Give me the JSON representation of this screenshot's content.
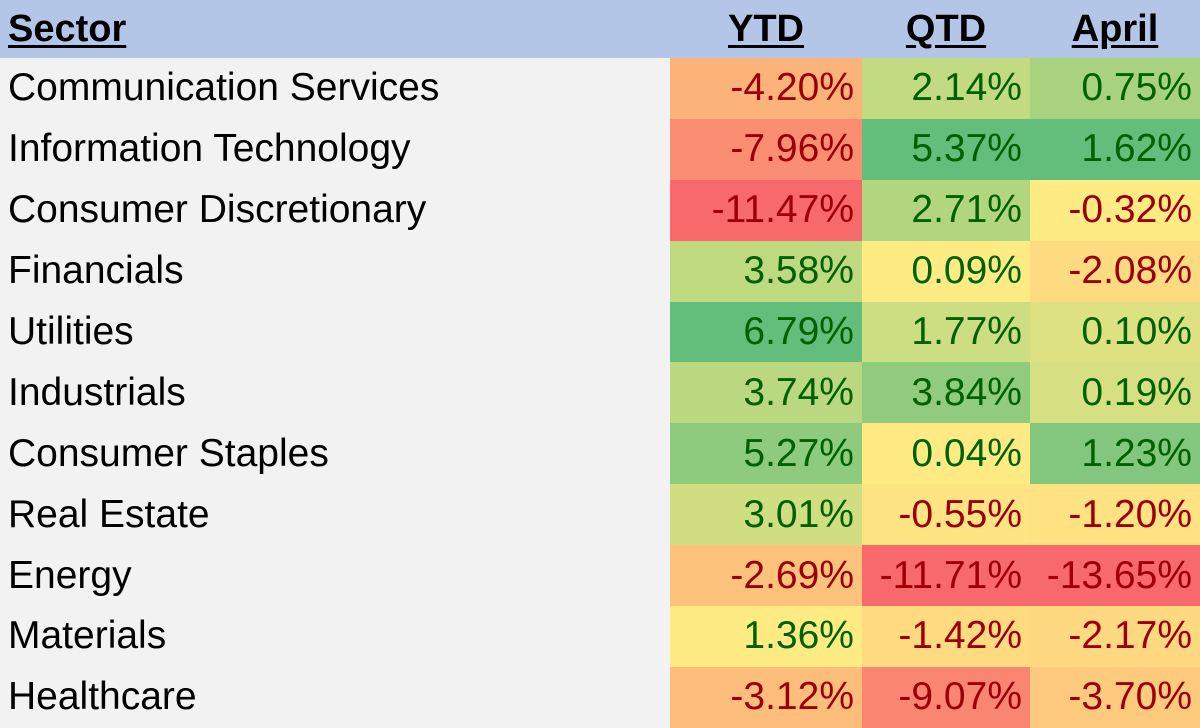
{
  "chart_data": {
    "type": "table",
    "title": "",
    "columns": [
      "Sector",
      "YTD",
      "QTD",
      "April"
    ],
    "rows": [
      {
        "sector": "Communication Services",
        "ytd": "-4.20%",
        "qtd": "2.14%",
        "april": "0.75%"
      },
      {
        "sector": "Information Technology",
        "ytd": "-7.96%",
        "qtd": "5.37%",
        "april": "1.62%"
      },
      {
        "sector": "Consumer Discretionary",
        "ytd": "-11.47%",
        "qtd": "2.71%",
        "april": "-0.32%"
      },
      {
        "sector": "Financials",
        "ytd": "3.58%",
        "qtd": "0.09%",
        "april": "-2.08%"
      },
      {
        "sector": "Utilities",
        "ytd": "6.79%",
        "qtd": "1.77%",
        "april": "0.10%"
      },
      {
        "sector": "Industrials",
        "ytd": "3.74%",
        "qtd": "3.84%",
        "april": "0.19%"
      },
      {
        "sector": "Consumer Staples",
        "ytd": "5.27%",
        "qtd": "0.04%",
        "april": "1.23%"
      },
      {
        "sector": "Real Estate",
        "ytd": "3.01%",
        "qtd": "-0.55%",
        "april": "-1.20%"
      },
      {
        "sector": "Energy",
        "ytd": "-2.69%",
        "qtd": "-11.71%",
        "april": "-13.65%"
      },
      {
        "sector": "Materials",
        "ytd": "1.36%",
        "qtd": "-1.42%",
        "april": "-2.17%"
      },
      {
        "sector": "Healthcare",
        "ytd": "-3.12%",
        "qtd": "-9.07%",
        "april": "-3.70%"
      }
    ]
  },
  "colors": {
    "header_bg": "#b4c6e7",
    "body_bg": "#f2f2f2",
    "positive_text": "#006100",
    "negative_text": "#9c0006",
    "scale_red": "#f8696b",
    "scale_yellow": "#ffeb84",
    "scale_green": "#63be7b"
  }
}
